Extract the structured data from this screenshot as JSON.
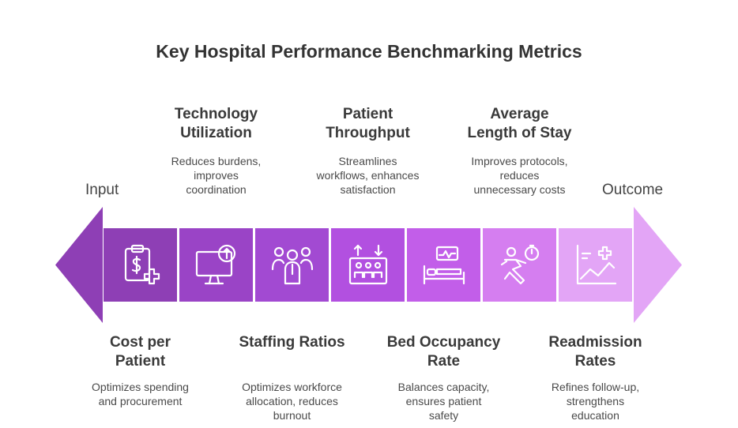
{
  "title": "Key Hospital Performance Benchmarking Metrics",
  "ends": {
    "input": "Input",
    "outcome": "Outcome"
  },
  "colors": {
    "left_arrow": "#8e3fb5",
    "right_arrow": "#e3a5f6",
    "blocks": [
      "#8e3fb5",
      "#9a44c6",
      "#a24ad2",
      "#b250e0",
      "#c25ee9",
      "#d57ef0",
      "#e3a5f6"
    ]
  },
  "metrics": [
    {
      "icon": "clipboard-dollar-icon",
      "position": "bottom",
      "label_lines": [
        "Cost per",
        "Patient"
      ],
      "desc_lines": [
        "Optimizes spending",
        "and procurement"
      ]
    },
    {
      "icon": "monitor-upload-icon",
      "position": "top",
      "label_lines": [
        "Technology",
        "Utilization"
      ],
      "desc_lines": [
        "Reduces burdens,",
        "improves",
        "coordination"
      ]
    },
    {
      "icon": "medical-staff-icon",
      "position": "bottom",
      "label_lines": [
        "Staffing Ratios"
      ],
      "desc_lines": [
        "Optimizes workforce",
        "allocation, reduces",
        "burnout"
      ]
    },
    {
      "icon": "patient-flow-icon",
      "position": "top",
      "label_lines": [
        "Patient",
        "Throughput"
      ],
      "desc_lines": [
        "Streamlines",
        "workflows, enhances",
        "satisfaction"
      ]
    },
    {
      "icon": "hospital-bed-icon",
      "position": "bottom",
      "label_lines": [
        "Bed Occupancy",
        "Rate"
      ],
      "desc_lines": [
        "Balances capacity,",
        "ensures patient",
        "safety"
      ]
    },
    {
      "icon": "running-timer-icon",
      "position": "top",
      "label_lines": [
        "Average",
        "Length of Stay"
      ],
      "desc_lines": [
        "Improves protocols,",
        "reduces",
        "unnecessary costs"
      ]
    },
    {
      "icon": "chart-medical-icon",
      "position": "bottom",
      "label_lines": [
        "Readmission",
        "Rates"
      ],
      "desc_lines": [
        "Refines follow-up,",
        "strengthens",
        "education"
      ]
    }
  ]
}
